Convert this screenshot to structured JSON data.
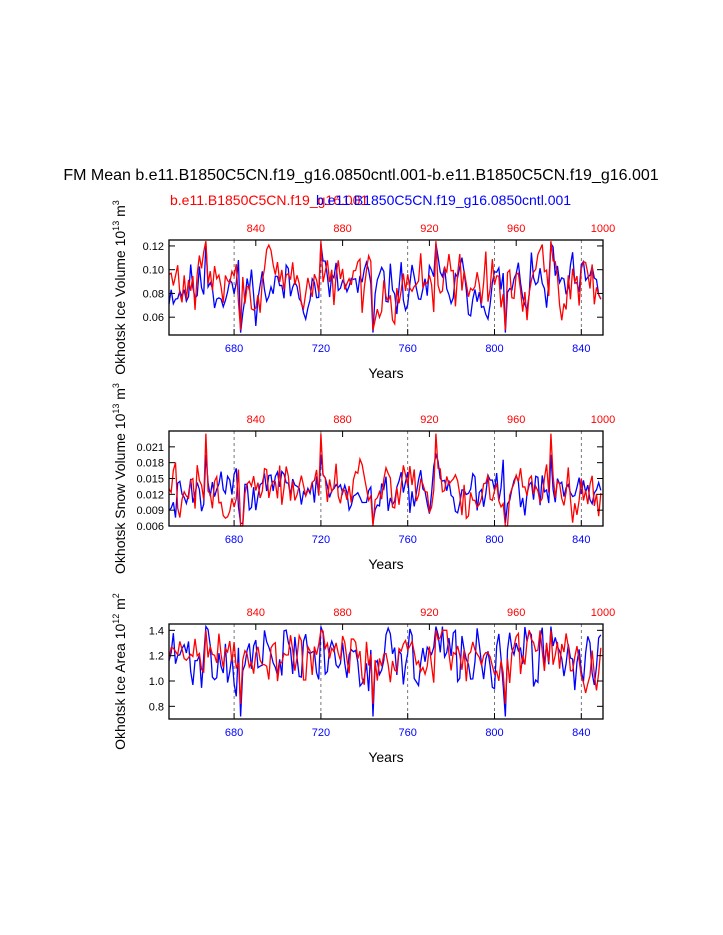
{
  "colors": {
    "model_a": "#ff0000",
    "model_b": "#0000ff",
    "axis": "#000000",
    "grid": "#555555"
  },
  "title": "FM Mean b.e11.B1850C5CN.f19_g16.0850cntl.001-b.e11.B1850C5CN.f19_g16.001",
  "legend": {
    "model_a": "b.e11.B1850C5CN.f19_g16.001",
    "model_b": "b.e11.B1850C5CN.f19_g16.0850cntl.001"
  },
  "chart_data": [
    {
      "type": "line",
      "ylabel": "Okhotsk Ice Volume 10^13 m^3",
      "ylabel_parts": {
        "name": "Okhotsk Ice Volume 10",
        "exp": "13",
        "unit": " m",
        "unit_exp": "3"
      },
      "xlabel": "Years",
      "xlim_bottom": [
        650,
        850
      ],
      "xticks_bottom": [
        "680",
        "720",
        "760",
        "800",
        "840"
      ],
      "xlim_top": [
        800,
        1000
      ],
      "xticks_top": [
        "840",
        "880",
        "920",
        "960",
        "1000"
      ],
      "ylim": [
        0.045,
        0.125
      ],
      "yticks": [
        "0.06",
        "0.08",
        "0.10",
        "0.12"
      ],
      "series": [
        {
          "name": "b.e11.B1850C5CN.f19_g16.0850cntl.001",
          "axis": "bottom",
          "seed": 11,
          "mean": 0.085,
          "amp": 0.011,
          "min": 0.047,
          "max": 0.122
        },
        {
          "name": "b.e11.B1850C5CN.f19_g16.001",
          "axis": "top",
          "seed": 29,
          "mean": 0.088,
          "amp": 0.012,
          "min": 0.049,
          "max": 0.124
        }
      ]
    },
    {
      "type": "line",
      "ylabel": "Okhotsk Snow Volume 10^13 m^3",
      "ylabel_parts": {
        "name": "Okhotsk Snow Volume 10",
        "exp": "13",
        "unit": " m",
        "unit_exp": "3"
      },
      "xlabel": "Years",
      "xlim_bottom": [
        650,
        850
      ],
      "xticks_bottom": [
        "680",
        "720",
        "760",
        "800",
        "840"
      ],
      "xlim_top": [
        800,
        1000
      ],
      "xticks_top": [
        "840",
        "880",
        "920",
        "960",
        "1000"
      ],
      "ylim": [
        0.006,
        0.024
      ],
      "yticks": [
        "0.006",
        "0.009",
        "0.012",
        "0.015",
        "0.018",
        "0.021"
      ],
      "series": [
        {
          "name": "b.e11.B1850C5CN.f19_g16.0850cntl.001",
          "axis": "bottom",
          "seed": 43,
          "mean": 0.0125,
          "amp": 0.0022,
          "min": 0.0065,
          "max": 0.0195
        },
        {
          "name": "b.e11.B1850C5CN.f19_g16.001",
          "axis": "top",
          "seed": 57,
          "mean": 0.0128,
          "amp": 0.0025,
          "min": 0.006,
          "max": 0.0235
        }
      ]
    },
    {
      "type": "line",
      "ylabel": "Okhotsk Ice Area 10^12 m^2",
      "ylabel_parts": {
        "name": "Okhotsk Ice Area 10",
        "exp": "12",
        "unit": " m",
        "unit_exp": "2"
      },
      "xlabel": "Years",
      "xlim_bottom": [
        650,
        850
      ],
      "xticks_bottom": [
        "680",
        "720",
        "760",
        "800",
        "840"
      ],
      "xlim_top": [
        800,
        1000
      ],
      "xticks_top": [
        "840",
        "880",
        "920",
        "960",
        "1000"
      ],
      "ylim": [
        0.7,
        1.45
      ],
      "yticks": [
        "0.8",
        "1.0",
        "1.2",
        "1.4"
      ],
      "series": [
        {
          "name": "b.e11.B1850C5CN.f19_g16.0850cntl.001",
          "axis": "bottom",
          "seed": 71,
          "mean": 1.18,
          "amp": 0.12,
          "min": 0.72,
          "max": 1.43
        },
        {
          "name": "b.e11.B1850C5CN.f19_g16.001",
          "axis": "top",
          "seed": 89,
          "mean": 1.2,
          "amp": 0.11,
          "min": 0.82,
          "max": 1.4
        }
      ]
    }
  ]
}
